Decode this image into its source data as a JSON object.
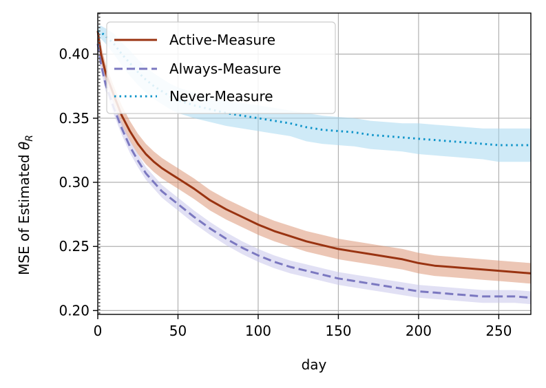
{
  "chart_data": {
    "type": "line",
    "xlabel": "day",
    "ylabel": "MSE of Estimated ",
    "ylabel_symbol": "θ",
    "ylabel_subscript": "R",
    "xlim": [
      0,
      270
    ],
    "ylim": [
      0.197,
      0.432
    ],
    "xticks": [
      0,
      50,
      100,
      150,
      200,
      250
    ],
    "xtick_labels": [
      "0",
      "50",
      "100",
      "150",
      "200",
      "250"
    ],
    "yticks": [
      0.2,
      0.25,
      0.3,
      0.35,
      0.4
    ],
    "ytick_labels": [
      "0.20",
      "0.25",
      "0.30",
      "0.35",
      "0.40"
    ],
    "grid": true,
    "legend_position": "upper-left",
    "vline_x": 1,
    "series": [
      {
        "name": "Active-Measure",
        "color": "#993311",
        "band_color": "#d98d6b",
        "style": "solid",
        "x": [
          0,
          2,
          5,
          10,
          15,
          20,
          25,
          30,
          35,
          40,
          45,
          50,
          60,
          70,
          80,
          90,
          100,
          110,
          120,
          130,
          140,
          150,
          160,
          170,
          180,
          190,
          200,
          210,
          220,
          230,
          240,
          250,
          260,
          270
        ],
        "y": [
          0.418,
          0.4,
          0.385,
          0.368,
          0.352,
          0.34,
          0.33,
          0.322,
          0.316,
          0.311,
          0.307,
          0.303,
          0.295,
          0.286,
          0.279,
          0.273,
          0.267,
          0.262,
          0.258,
          0.254,
          0.251,
          0.248,
          0.246,
          0.244,
          0.242,
          0.24,
          0.237,
          0.235,
          0.234,
          0.233,
          0.232,
          0.231,
          0.23,
          0.229
        ],
        "band": [
          0.006,
          0.007,
          0.007,
          0.007,
          0.008,
          0.008,
          0.008,
          0.008,
          0.008,
          0.008,
          0.008,
          0.008,
          0.008,
          0.008,
          0.008,
          0.008,
          0.008,
          0.008,
          0.008,
          0.008,
          0.008,
          0.008,
          0.008,
          0.008,
          0.008,
          0.008,
          0.008,
          0.008,
          0.008,
          0.008,
          0.008,
          0.008,
          0.008,
          0.008
        ]
      },
      {
        "name": "Always-Measure",
        "color": "#7b78c0",
        "band_color": "#c3c2ea",
        "style": "dashed",
        "x": [
          0,
          2,
          5,
          10,
          15,
          20,
          25,
          30,
          35,
          40,
          45,
          50,
          60,
          70,
          80,
          90,
          100,
          110,
          120,
          130,
          140,
          150,
          160,
          170,
          180,
          190,
          200,
          210,
          220,
          230,
          240,
          250,
          260,
          270
        ],
        "y": [
          0.408,
          0.392,
          0.376,
          0.358,
          0.342,
          0.328,
          0.317,
          0.307,
          0.3,
          0.293,
          0.288,
          0.283,
          0.273,
          0.264,
          0.256,
          0.249,
          0.243,
          0.238,
          0.234,
          0.231,
          0.228,
          0.225,
          0.223,
          0.221,
          0.219,
          0.217,
          0.215,
          0.214,
          0.213,
          0.212,
          0.211,
          0.211,
          0.211,
          0.21
        ],
        "band": [
          0.005,
          0.005,
          0.005,
          0.005,
          0.005,
          0.005,
          0.005,
          0.005,
          0.005,
          0.005,
          0.005,
          0.005,
          0.005,
          0.005,
          0.005,
          0.005,
          0.005,
          0.005,
          0.005,
          0.005,
          0.005,
          0.005,
          0.005,
          0.005,
          0.005,
          0.005,
          0.005,
          0.005,
          0.005,
          0.005,
          0.005,
          0.005,
          0.005,
          0.005
        ]
      },
      {
        "name": "Never-Measure",
        "color": "#0e94c9",
        "band_color": "#9fd5ef",
        "style": "dotted",
        "x": [
          0,
          2,
          5,
          10,
          15,
          20,
          25,
          30,
          35,
          40,
          45,
          50,
          60,
          70,
          80,
          90,
          100,
          110,
          120,
          130,
          140,
          150,
          160,
          170,
          180,
          190,
          200,
          210,
          220,
          230,
          240,
          250,
          260,
          270
        ],
        "y": [
          0.418,
          0.417,
          0.414,
          0.408,
          0.4,
          0.393,
          0.386,
          0.38,
          0.375,
          0.371,
          0.367,
          0.364,
          0.36,
          0.357,
          0.354,
          0.352,
          0.35,
          0.348,
          0.346,
          0.343,
          0.341,
          0.34,
          0.339,
          0.337,
          0.336,
          0.335,
          0.334,
          0.333,
          0.332,
          0.331,
          0.33,
          0.329,
          0.329,
          0.329
        ],
        "band": [
          0.004,
          0.005,
          0.006,
          0.008,
          0.009,
          0.01,
          0.01,
          0.01,
          0.01,
          0.01,
          0.01,
          0.01,
          0.01,
          0.01,
          0.01,
          0.01,
          0.01,
          0.01,
          0.01,
          0.011,
          0.011,
          0.011,
          0.011,
          0.011,
          0.011,
          0.011,
          0.012,
          0.012,
          0.012,
          0.012,
          0.012,
          0.013,
          0.013,
          0.013
        ]
      }
    ]
  }
}
